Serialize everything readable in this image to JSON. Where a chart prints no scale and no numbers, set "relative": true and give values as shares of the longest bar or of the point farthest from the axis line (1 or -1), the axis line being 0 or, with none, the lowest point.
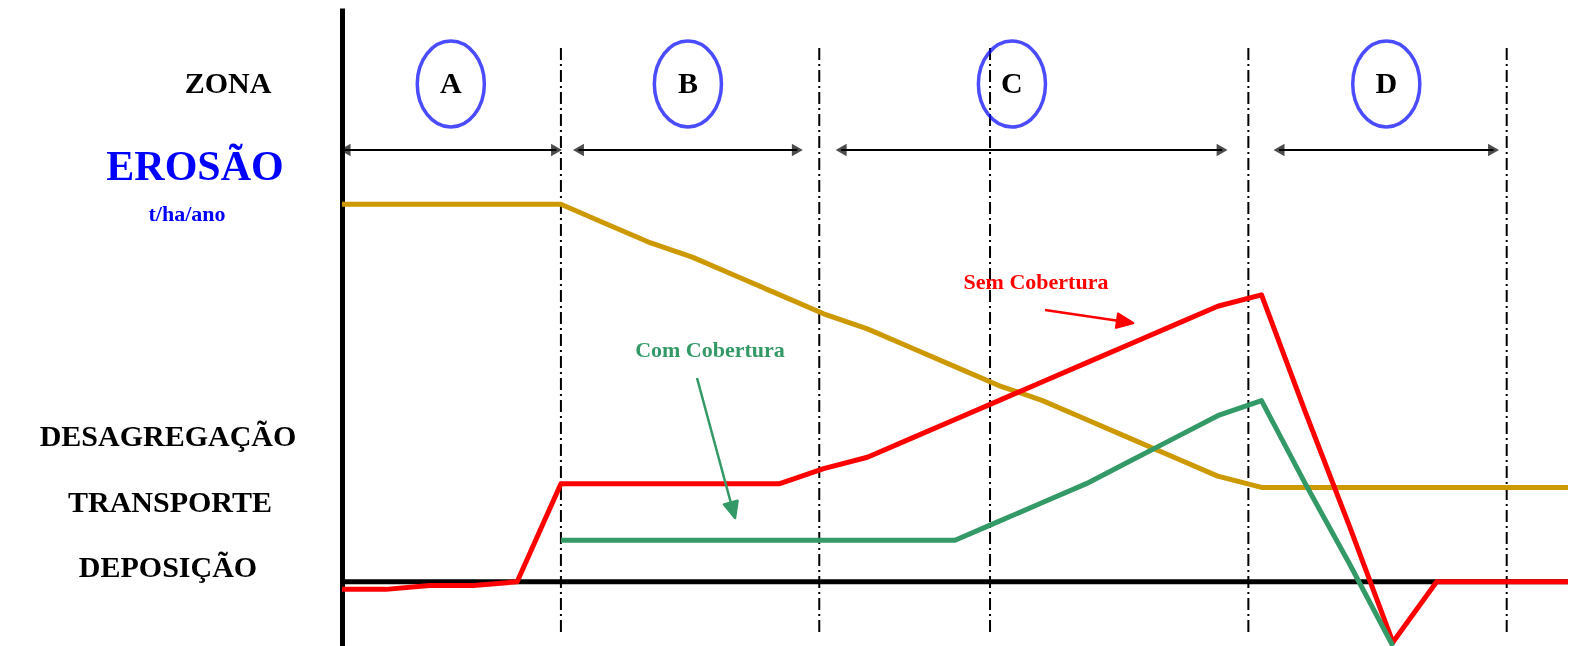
{
  "chart_data": {
    "type": "line",
    "relative": true,
    "ylabel": "EROSÃO t/ha/ano",
    "categories": [
      null,
      null,
      null,
      null,
      null,
      null,
      null,
      null,
      null,
      null,
      null,
      null,
      null,
      null,
      null,
      null,
      null,
      null,
      null,
      null,
      null,
      null,
      null,
      null,
      null,
      null,
      null,
      null,
      null
    ],
    "annotations": [
      "ZONA",
      "A",
      "B",
      "C",
      "D",
      "DESAGREGAÇÃO",
      "TRANSPORTE",
      "DEPOSIÇÃO"
    ],
    "series": [
      {
        "color": "#cc9900",
        "values": [
          1,
          1,
          1,
          1,
          1,
          1,
          0.95,
          0.9,
          0.86,
          0.81,
          0.76,
          0.71,
          0.67,
          0.62,
          0.57,
          0.52,
          0.48,
          0.43,
          0.38,
          0.33,
          0.28,
          0.25,
          0.25,
          0.25,
          0.25,
          0.25,
          0.25,
          0.25,
          0.25
        ]
      },
      {
        "name": "Sem Cobertura",
        "color": "#ff0000",
        "values": [
          -0.02,
          -0.02,
          -0.01,
          -0.01,
          0,
          0.26,
          0.26,
          0.26,
          0.26,
          0.26,
          0.26,
          0.3,
          0.33,
          0.38,
          0.43,
          0.48,
          0.53,
          0.58,
          0.63,
          0.68,
          0.73,
          0.76,
          0.45,
          0.15,
          -0.16,
          0,
          0,
          0,
          0
        ]
      },
      {
        "name": "Com Cobertura",
        "color": "#339966",
        "values": [
          null,
          null,
          null,
          null,
          null,
          0.11,
          0.11,
          0.11,
          0.11,
          0.11,
          0.11,
          0.11,
          0.11,
          0.11,
          0.11,
          0.16,
          0.21,
          0.26,
          0.32,
          0.38,
          0.44,
          0.48,
          0.26,
          0.05,
          -0.17,
          null,
          null,
          null,
          null
        ]
      }
    ]
  }
}
